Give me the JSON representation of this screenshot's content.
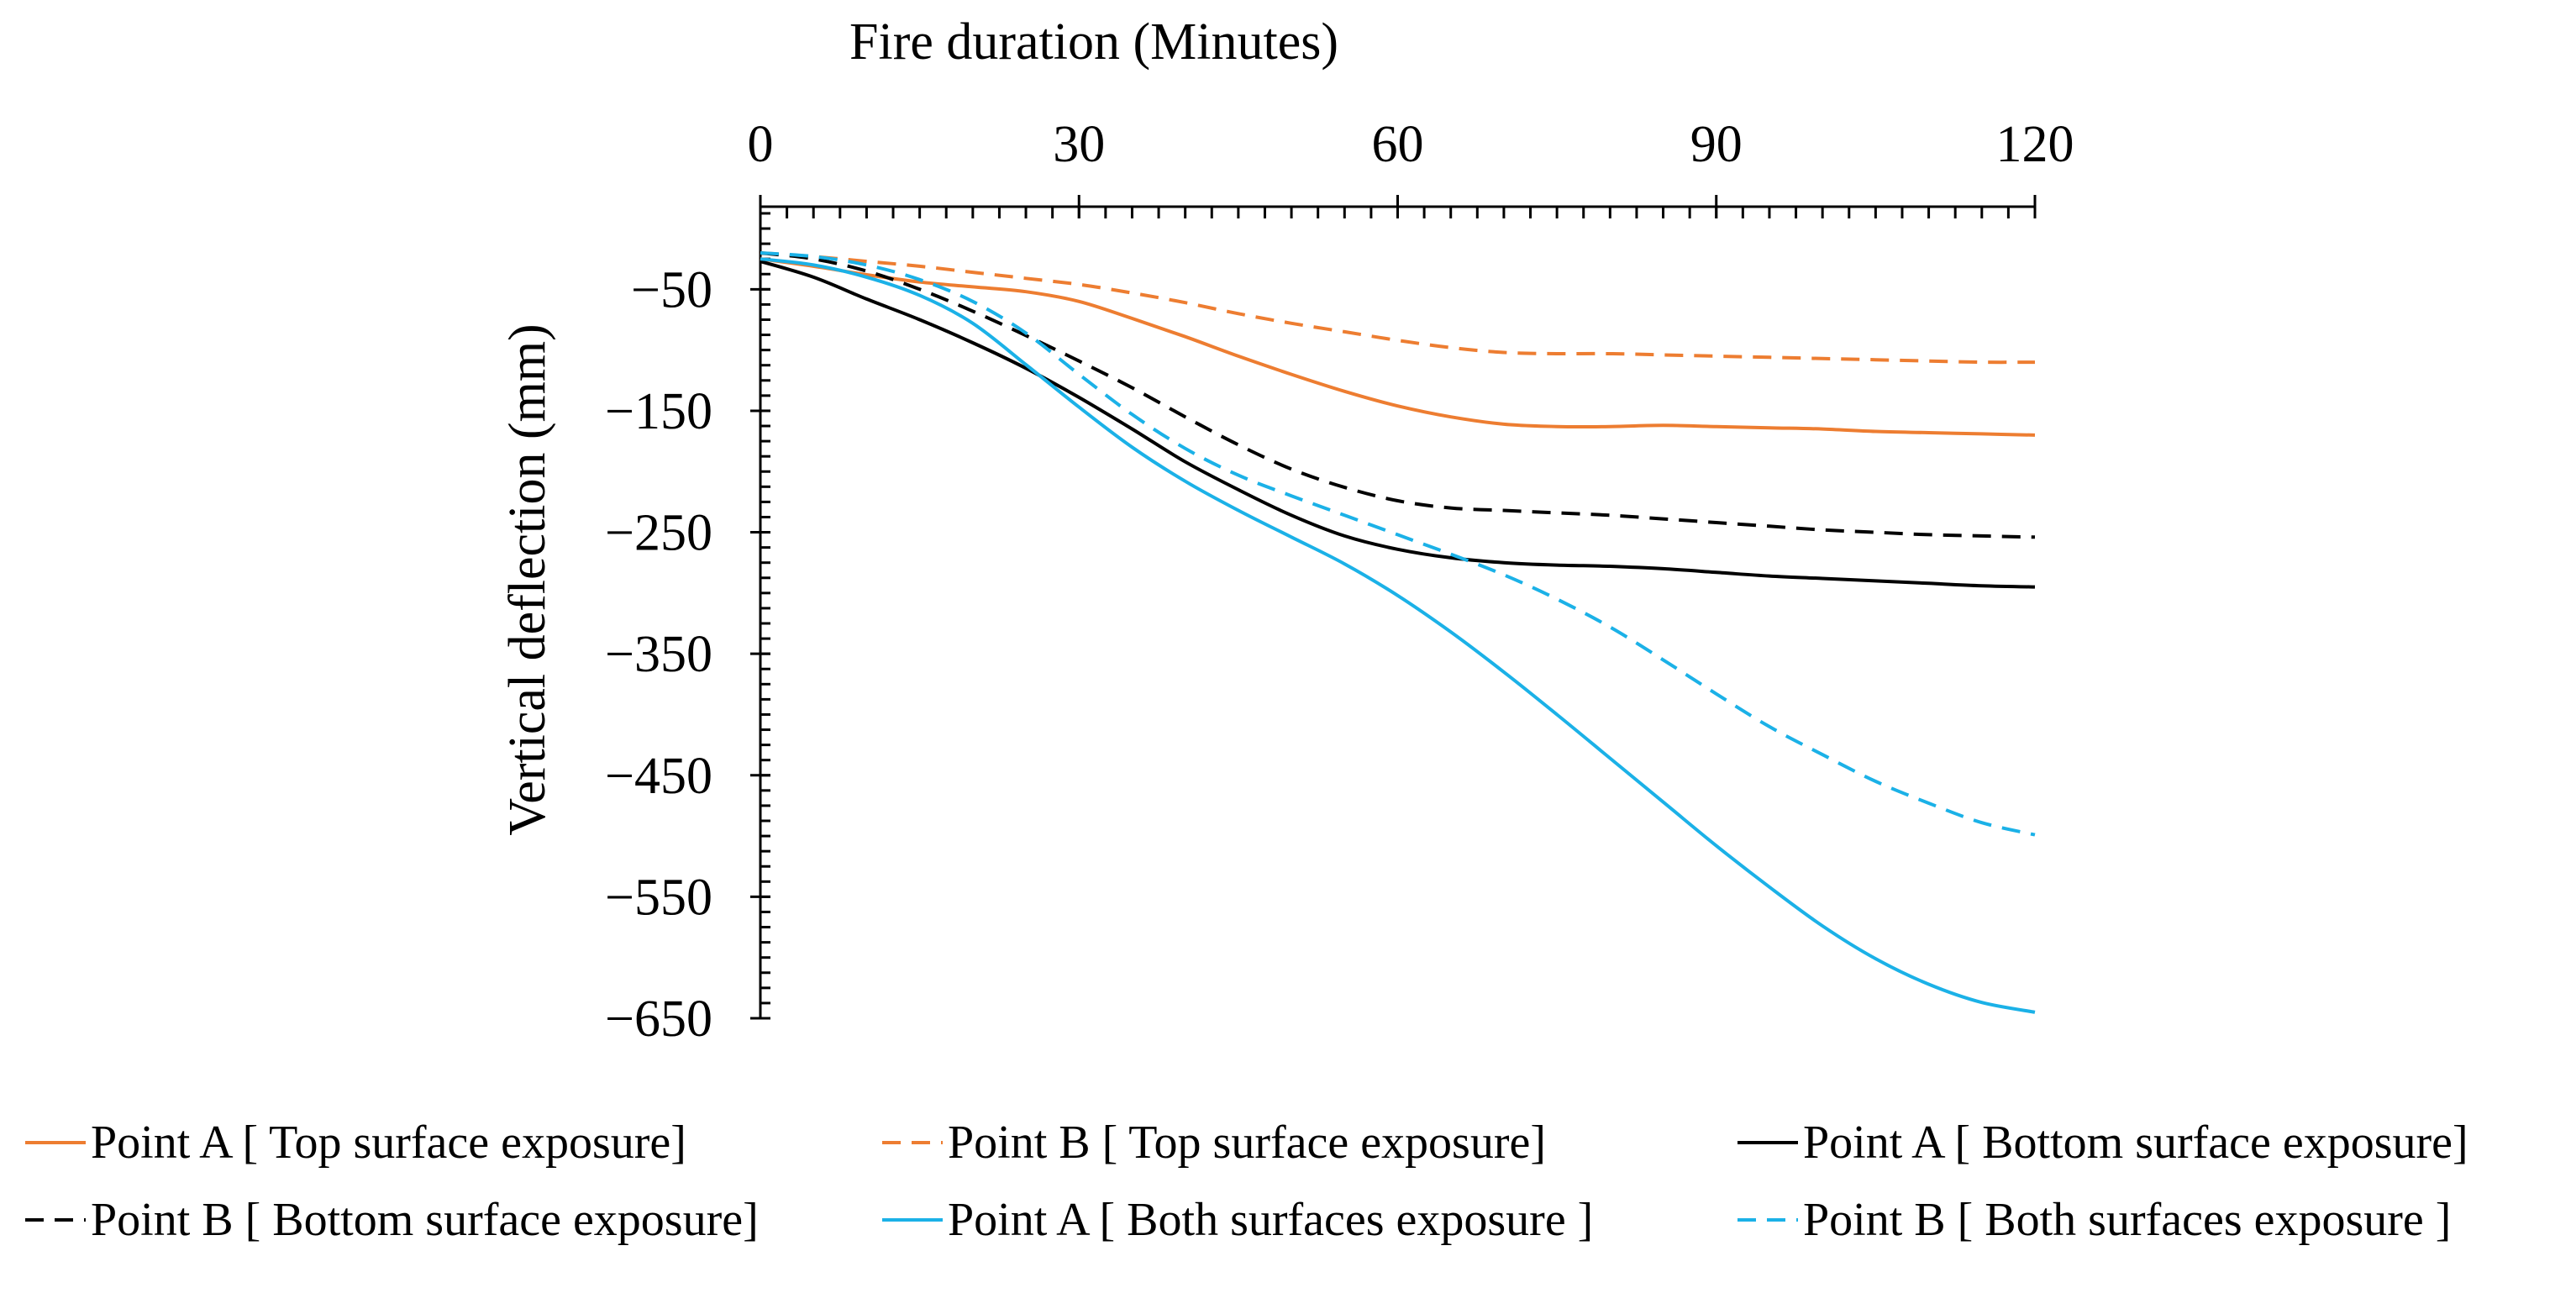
{
  "chart_data": {
    "type": "line",
    "title": "",
    "xlabel": "Fire duration (Minutes)",
    "ylabel": "Vertical deflection (mm)",
    "xlim": [
      0,
      120
    ],
    "ylim": [
      -650,
      18
    ],
    "x_ticks": [
      0,
      30,
      60,
      90,
      120
    ],
    "x_tick_labels": [
      "0",
      "30",
      "60",
      "90",
      "120"
    ],
    "y_ticks": [
      -50,
      -150,
      -250,
      -350,
      -450,
      -550,
      -650
    ],
    "y_tick_labels": [
      "−50",
      "−150",
      "−250",
      "−350",
      "−450",
      "−550",
      "−650"
    ],
    "x_axis_position": "top",
    "legend_position": "bottom",
    "series": [
      {
        "name": "Point A [ Top surface exposure]",
        "color": "#ED7D31",
        "dash": "solid",
        "x": [
          0,
          5,
          10,
          15,
          20,
          25,
          30,
          35,
          40,
          45,
          50,
          55,
          60,
          65,
          70,
          75,
          80,
          85,
          90,
          95,
          100,
          105,
          110,
          115,
          120
        ],
        "y": [
          -25,
          -31,
          -38,
          -44,
          -48,
          -52,
          -60,
          -74,
          -89,
          -105,
          -120,
          -134,
          -146,
          -155,
          -161,
          -163,
          -163,
          -162,
          -163,
          -164,
          -165,
          -167,
          -168,
          -169,
          -170
        ]
      },
      {
        "name": "Point B [ Top surface exposure]",
        "color": "#ED7D31",
        "dash": "dashed",
        "x": [
          0,
          5,
          10,
          15,
          20,
          25,
          30,
          35,
          40,
          45,
          50,
          55,
          60,
          65,
          70,
          75,
          80,
          85,
          90,
          95,
          100,
          105,
          110,
          115,
          120
        ],
        "y": [
          -20,
          -23,
          -27,
          -31,
          -36,
          -41,
          -46,
          -53,
          -61,
          -70,
          -78,
          -85,
          -92,
          -98,
          -102,
          -103,
          -103,
          -104,
          -105,
          -106,
          -107,
          -108,
          -109,
          -110,
          -110
        ]
      },
      {
        "name": "Point A [ Bottom surface exposure]",
        "color": "#000000",
        "dash": "solid",
        "x": [
          0,
          5,
          10,
          15,
          20,
          25,
          30,
          35,
          40,
          45,
          50,
          55,
          60,
          65,
          70,
          75,
          80,
          85,
          90,
          95,
          100,
          105,
          110,
          115,
          120
        ],
        "y": [
          -27,
          -40,
          -58,
          -75,
          -94,
          -115,
          -139,
          -165,
          -192,
          -215,
          -236,
          -253,
          -264,
          -271,
          -275,
          -277,
          -278,
          -280,
          -283,
          -286,
          -288,
          -290,
          -292,
          -294,
          -295
        ]
      },
      {
        "name": "Point B [ Bottom surface exposure]",
        "color": "#000000",
        "dash": "dashed",
        "x": [
          0,
          5,
          10,
          15,
          20,
          25,
          30,
          35,
          40,
          45,
          50,
          55,
          60,
          65,
          70,
          75,
          80,
          85,
          90,
          95,
          100,
          105,
          110,
          115,
          120
        ],
        "y": [
          -20,
          -25,
          -35,
          -50,
          -68,
          -88,
          -109,
          -131,
          -155,
          -178,
          -198,
          -213,
          -224,
          -230,
          -232,
          -234,
          -236,
          -239,
          -242,
          -245,
          -248,
          -250,
          -252,
          -253,
          -254
        ]
      },
      {
        "name": "Point A [ Both surfaces exposure ]",
        "color": "#1BB1E7",
        "dash": "solid",
        "x": [
          0,
          5,
          10,
          15,
          20,
          25,
          30,
          35,
          40,
          45,
          50,
          55,
          60,
          65,
          70,
          75,
          80,
          85,
          90,
          95,
          100,
          105,
          110,
          115,
          120
        ],
        "y": [
          -25,
          -30,
          -40,
          -55,
          -78,
          -112,
          -147,
          -180,
          -208,
          -232,
          -254,
          -276,
          -302,
          -332,
          -365,
          -400,
          -436,
          -472,
          -508,
          -542,
          -574,
          -601,
          -622,
          -637,
          -645
        ]
      },
      {
        "name": "Point B [ Both surfaces exposure ]",
        "color": "#1BB1E7",
        "dash": "dashed",
        "x": [
          0,
          5,
          10,
          15,
          20,
          25,
          30,
          35,
          40,
          45,
          50,
          55,
          60,
          65,
          70,
          75,
          80,
          85,
          90,
          95,
          100,
          105,
          110,
          115,
          120
        ],
        "y": [
          -20,
          -23,
          -30,
          -42,
          -60,
          -86,
          -120,
          -153,
          -181,
          -203,
          -220,
          -236,
          -252,
          -268,
          -285,
          -305,
          -328,
          -355,
          -383,
          -410,
          -433,
          -455,
          -473,
          -489,
          -499
        ]
      }
    ]
  }
}
